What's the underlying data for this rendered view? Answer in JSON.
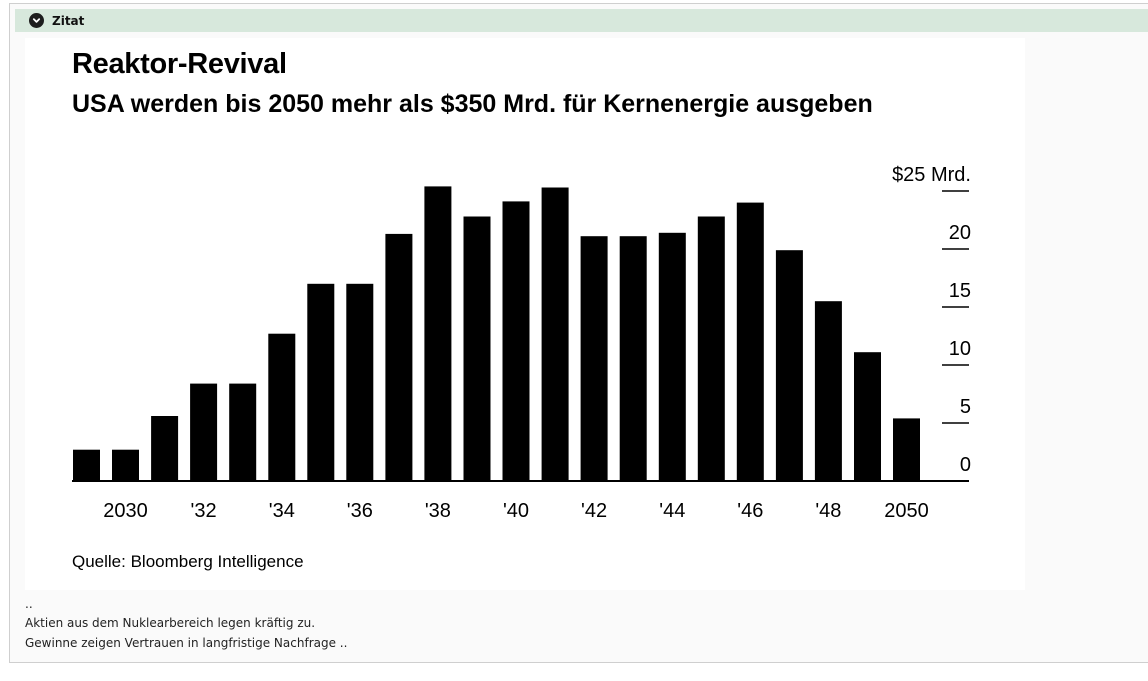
{
  "quote": {
    "label": "Zitat",
    "toggle_icon": "chevron-down-circle-icon"
  },
  "chart_data": {
    "type": "bar",
    "title": "Reaktor-Revival",
    "subtitle": "USA werden bis 2050 mehr als $350 Mrd. für Kernenergie ausgeben",
    "source": "Quelle: Bloomberg Intelligence",
    "unit_label": "$25 Mrd.",
    "xlabel": "",
    "ylabel": "",
    "ylim": [
      0,
      25
    ],
    "grid": false,
    "y_ticks": [
      0,
      5,
      10,
      15,
      20,
      25
    ],
    "y_tick_labels": [
      "0",
      "5",
      "10",
      "15",
      "20",
      "$25 Mrd."
    ],
    "x": [
      2029,
      2030,
      2031,
      2032,
      2033,
      2034,
      2035,
      2036,
      2037,
      2038,
      2039,
      2040,
      2041,
      2042,
      2043,
      2044,
      2045,
      2046,
      2047,
      2048,
      2049,
      2050
    ],
    "x_tick_labels": [
      {
        "year": 2030,
        "label": "2030"
      },
      {
        "year": 2032,
        "label": "'32"
      },
      {
        "year": 2034,
        "label": "'34"
      },
      {
        "year": 2036,
        "label": "'36"
      },
      {
        "year": 2038,
        "label": "'38"
      },
      {
        "year": 2040,
        "label": "'40"
      },
      {
        "year": 2042,
        "label": "'42"
      },
      {
        "year": 2044,
        "label": "'44"
      },
      {
        "year": 2046,
        "label": "'46"
      },
      {
        "year": 2048,
        "label": "'48"
      },
      {
        "year": 2050,
        "label": "2050"
      }
    ],
    "values": [
      2.7,
      2.7,
      5.6,
      8.4,
      8.4,
      12.7,
      17.0,
      17.0,
      21.3,
      25.4,
      22.8,
      24.1,
      25.3,
      21.1,
      21.1,
      21.4,
      22.8,
      24.0,
      19.9,
      15.5,
      11.1,
      5.4
    ],
    "colors": {
      "bar": "#000000",
      "axis": "#000000",
      "text": "#000000"
    }
  },
  "below_text": {
    "dots": "..",
    "line1": "Aktien aus dem Nuklearbereich legen kräftig zu.",
    "line2": "Gewinne zeigen Vertrauen in langfristige Nachfrage .."
  }
}
